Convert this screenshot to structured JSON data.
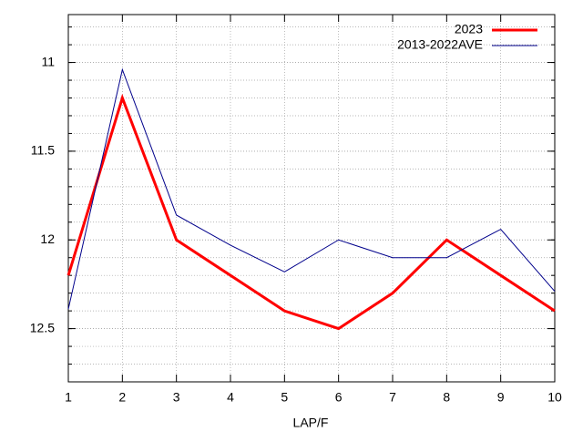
{
  "chart_data": {
    "type": "line",
    "xlabel": "LAP/F",
    "x": [
      1,
      2,
      3,
      4,
      5,
      6,
      7,
      8,
      9,
      10
    ],
    "series": [
      {
        "name": "2023",
        "color": "#ff0000",
        "width": 3,
        "values": [
          12.2,
          11.2,
          12.0,
          12.2,
          12.4,
          12.5,
          12.3,
          12.0,
          12.2,
          12.4
        ]
      },
      {
        "name": "2013-2022AVE",
        "color": "#00008b",
        "width": 1,
        "values": [
          12.39,
          11.04,
          11.86,
          12.03,
          12.18,
          12.0,
          12.1,
          12.1,
          11.94,
          12.29
        ]
      }
    ],
    "xlim": [
      1,
      10
    ],
    "xticks": [
      1,
      2,
      3,
      4,
      5,
      6,
      7,
      8,
      9,
      10
    ],
    "ylim": [
      12.8,
      10.73
    ],
    "yticks": [
      11,
      11.5,
      12,
      12.5
    ],
    "grid": true,
    "y_minor_subdivisions": 5,
    "legend": "top-right"
  }
}
